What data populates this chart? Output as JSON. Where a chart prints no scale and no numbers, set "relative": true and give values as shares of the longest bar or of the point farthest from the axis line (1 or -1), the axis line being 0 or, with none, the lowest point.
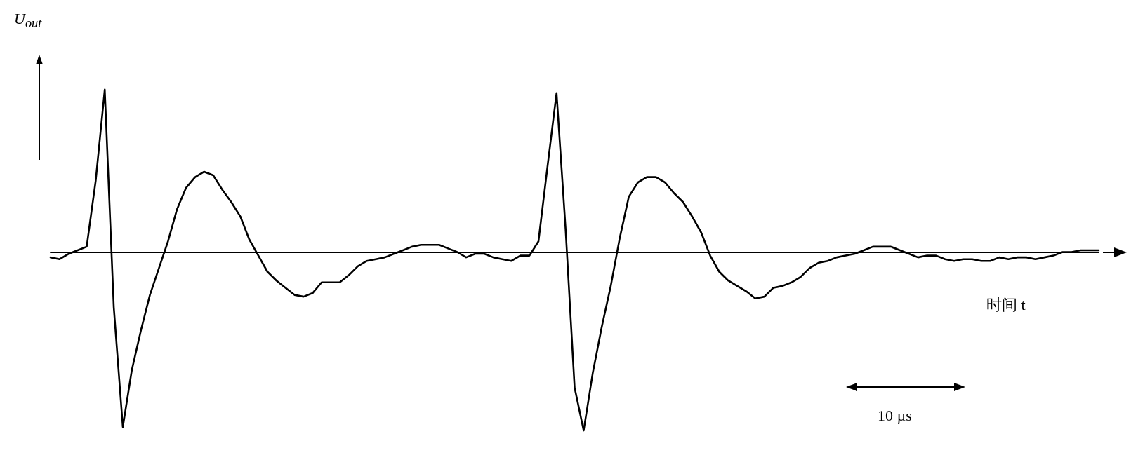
{
  "chart_data": {
    "type": "line",
    "relative": true,
    "ylabel": "U$_{out}$",
    "xlabel": "时间 t",
    "annotations": [
      "10 µs"
    ],
    "marker": "none",
    "line_style": "solid",
    "grid": false,
    "categories": [
      null,
      null,
      null,
      null,
      null,
      null,
      null,
      null,
      null,
      null,
      null,
      null,
      null,
      null,
      null,
      null,
      null,
      null,
      null,
      null,
      null,
      null,
      null,
      null,
      null,
      null,
      null,
      null,
      null,
      null,
      null,
      null,
      null,
      null,
      null,
      null,
      null,
      null,
      null,
      null,
      null,
      null,
      null,
      null,
      null,
      null,
      null,
      null,
      null,
      null,
      null,
      null,
      null,
      null,
      null,
      null,
      null,
      null,
      null,
      null,
      null,
      null,
      null,
      null,
      null,
      null,
      null,
      null,
      null,
      null,
      null,
      null,
      null,
      null,
      null,
      null,
      null,
      null,
      null,
      null,
      null,
      null,
      null,
      null,
      null,
      null,
      null,
      null,
      null,
      null,
      null,
      null,
      null,
      null,
      null,
      null,
      null,
      null,
      null,
      null,
      null,
      null,
      null,
      null,
      null,
      null,
      null,
      null,
      null,
      null,
      null,
      null,
      null,
      null,
      null,
      null,
      null
    ],
    "series": [
      {
        "color": "#000000",
        "values": [
          -0.03,
          -0.04,
          -0.01,
          0.01,
          0.03,
          0.4,
          0.91,
          -0.31,
          -0.98,
          -0.66,
          -0.44,
          -0.24,
          -0.09,
          0.06,
          0.24,
          0.36,
          0.42,
          0.45,
          0.43,
          0.35,
          0.28,
          0.2,
          0.07,
          -0.02,
          -0.11,
          -0.16,
          -0.2,
          -0.24,
          -0.25,
          -0.23,
          -0.17,
          -0.17,
          -0.17,
          -0.13,
          -0.08,
          -0.05,
          -0.04,
          -0.03,
          -0.01,
          0.01,
          0.03,
          0.04,
          0.04,
          0.04,
          0.02,
          0,
          -0.03,
          -0.01,
          -0.01,
          -0.03,
          -0.04,
          -0.05,
          -0.02,
          -0.02,
          0.06,
          0.48,
          0.89,
          0.13,
          -0.76,
          -1,
          -0.68,
          -0.42,
          -0.19,
          0.08,
          0.31,
          0.39,
          0.42,
          0.42,
          0.39,
          0.33,
          0.28,
          0.2,
          0.11,
          -0.02,
          -0.11,
          -0.16,
          -0.19,
          -0.22,
          -0.26,
          -0.25,
          -0.2,
          -0.19,
          -0.17,
          -0.14,
          -0.09,
          -0.06,
          -0.05,
          -0.03,
          -0.02,
          -0.01,
          0.01,
          0.03,
          0.03,
          0.03,
          0.01,
          -0.01,
          -0.03,
          -0.02,
          -0.02,
          -0.04,
          -0.05,
          -0.04,
          -0.04,
          -0.05,
          -0.05,
          -0.03,
          -0.04,
          -0.03,
          -0.03,
          -0.04,
          -0.03,
          -0.02,
          0,
          0,
          0.01,
          0.01,
          0.01
        ]
      }
    ]
  }
}
